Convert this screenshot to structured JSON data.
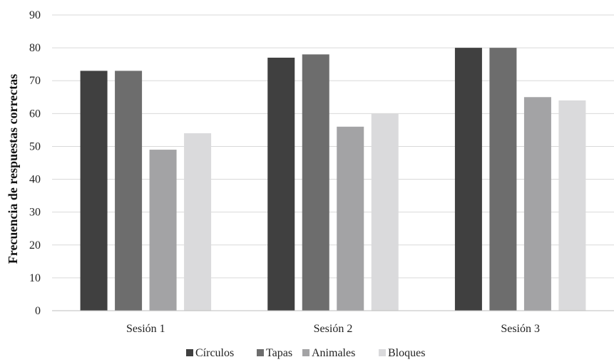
{
  "chart_data": {
    "type": "bar",
    "title": "",
    "xlabel": "",
    "ylabel": "Frecuencia de respuestas correctas",
    "ylim": [
      0,
      90
    ],
    "yticks": [
      0,
      10,
      20,
      30,
      40,
      50,
      60,
      70,
      80,
      90
    ],
    "grid": true,
    "legend_position": "bottom",
    "categories": [
      "Sesión 1",
      "Sesión 2",
      "Sesión 3"
    ],
    "series": [
      {
        "name": "Círculos",
        "color": "#404040",
        "values": [
          73,
          77,
          80
        ]
      },
      {
        "name": "Tapas",
        "color": "#6d6d6d",
        "values": [
          73,
          78,
          80
        ]
      },
      {
        "name": "Animales",
        "color": "#a3a3a5",
        "values": [
          49,
          56,
          65
        ]
      },
      {
        "name": "Bloques",
        "color": "#dadadc",
        "values": [
          54,
          60,
          64
        ]
      }
    ]
  }
}
